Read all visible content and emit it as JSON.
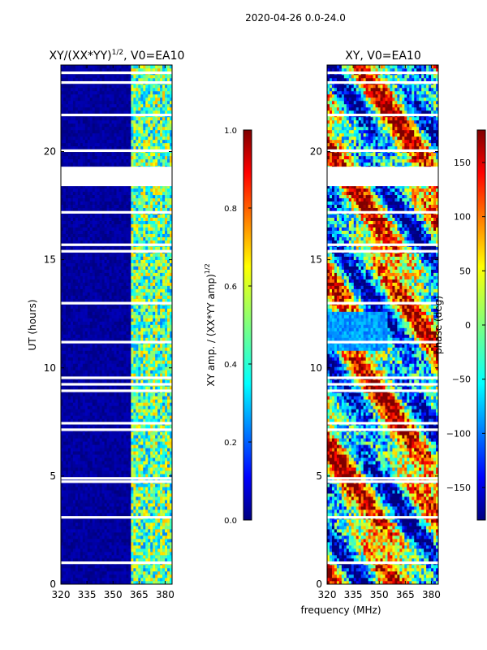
{
  "figure_title": "2020-04-26 0.0-24.0",
  "colors": {
    "jet": [
      "#00007f",
      "#0000ff",
      "#007fff",
      "#00ffff",
      "#7fff7f",
      "#ffff00",
      "#ff7f00",
      "#ff0000",
      "#7f0000"
    ]
  },
  "chart_data": [
    {
      "type": "heatmap",
      "title": "XY/(XX*YY)^{1/2}, V0=EA10",
      "title_main": "XY/(XX*YY)",
      "title_sup": "1/2",
      "title_tail": ", V0=EA10",
      "xlabel": "",
      "ylabel": "UT (hours)",
      "xlim": [
        320,
        384
      ],
      "ylim": [
        0,
        24
      ],
      "x_ticks": [
        320,
        335,
        350,
        365,
        380
      ],
      "y_ticks": [
        0,
        5,
        10,
        15,
        20
      ],
      "colorbar": {
        "label": "XY amp. / (XX*YY amp)^{1/2}",
        "label_main": "XY amp. / (XX*YY amp)",
        "label_sup": "1/2",
        "range": [
          0,
          1
        ],
        "ticks": [
          0.0,
          0.2,
          0.4,
          0.6,
          0.8,
          1.0
        ],
        "tick_labels": [
          "0.0",
          "0.2",
          "0.4",
          "0.6",
          "0.8",
          "1.0"
        ]
      },
      "flagged_hours": [
        [
          18.4,
          19.3
        ]
      ],
      "bright_band_mhz": [
        361,
        384
      ]
    },
    {
      "type": "heatmap",
      "title": "XY, V0=EA10",
      "xlabel": "frequency (MHz)",
      "ylabel": "",
      "xlim": [
        320,
        384
      ],
      "ylim": [
        0,
        24
      ],
      "x_ticks": [
        320,
        335,
        350,
        365,
        380
      ],
      "y_ticks": [
        0,
        5,
        10,
        15,
        20
      ],
      "colorbar": {
        "label": "phase (deg)",
        "range": [
          -180,
          180
        ],
        "ticks": [
          -150,
          -100,
          -50,
          0,
          50,
          100,
          150
        ],
        "tick_labels": [
          "−150",
          "−100",
          "−50",
          "0",
          "50",
          "100",
          "150"
        ]
      },
      "flagged_hours": [
        [
          18.4,
          19.3
        ]
      ]
    }
  ]
}
